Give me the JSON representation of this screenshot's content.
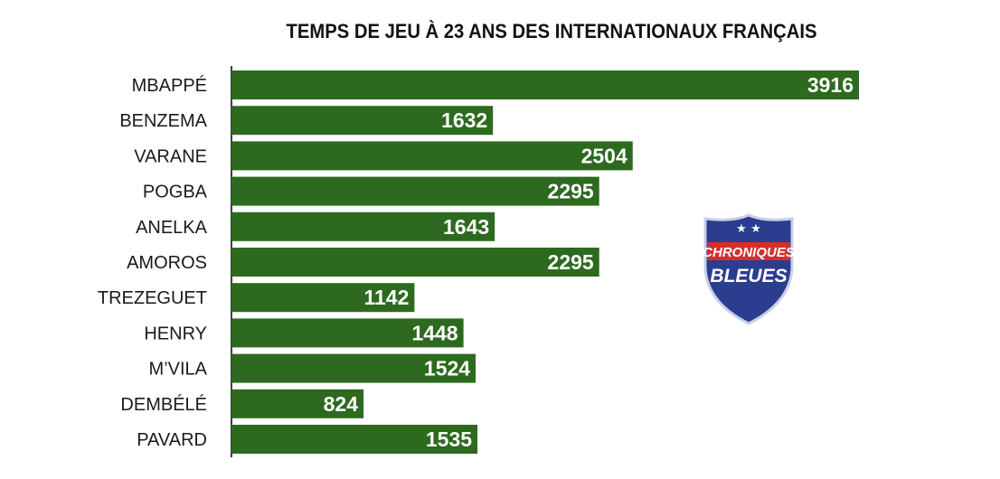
{
  "chart_data": {
    "type": "bar",
    "orientation": "horizontal",
    "title": "TEMPS DE JEU À 23 ANS DES INTERNATIONAUX FRANÇAIS",
    "categories": [
      "MBAPPÉ",
      "BENZEMA",
      "VARANE",
      "POGBA",
      "ANELKA",
      "AMOROS",
      "TREZEGUET",
      "HENRY",
      "M’VILA",
      "DEMBÉLÉ",
      "PAVARD"
    ],
    "values": [
      3916,
      1632,
      2504,
      2295,
      1643,
      2295,
      1142,
      1448,
      1524,
      824,
      1535
    ],
    "xlim": [
      0,
      3916
    ],
    "grid": false,
    "data_labels": true,
    "bar_color": "#2d6a1f"
  },
  "logo": {
    "line1": "CHRONIQUES",
    "line2": "BLEUES",
    "colors": {
      "blue": "#2a3d8f",
      "red": "#d32f2f",
      "white": "#ffffff"
    }
  }
}
